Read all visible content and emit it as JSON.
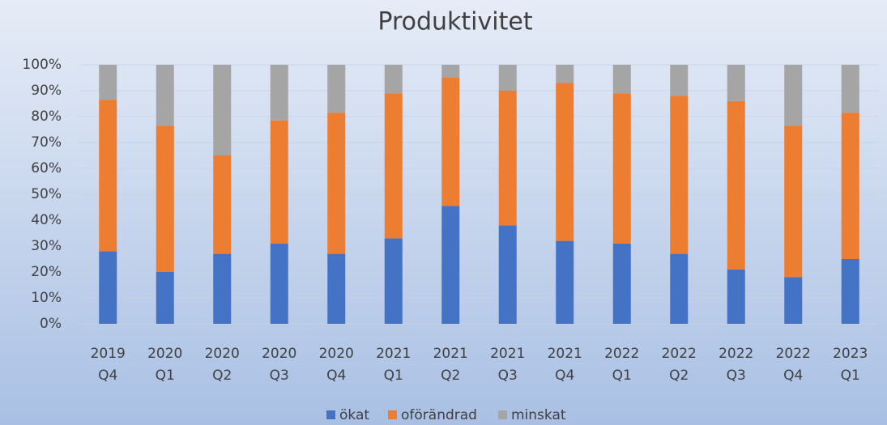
{
  "chart_data": {
    "type": "stacked_bar",
    "title": "Produktivitet",
    "categories": [
      [
        "2019",
        "Q4"
      ],
      [
        "2020",
        "Q1"
      ],
      [
        "2020",
        "Q2"
      ],
      [
        "2020",
        "Q3"
      ],
      [
        "2020",
        "Q4"
      ],
      [
        "2021",
        "Q1"
      ],
      [
        "2021",
        "Q2"
      ],
      [
        "2021",
        "Q3"
      ],
      [
        "2021",
        "Q4"
      ],
      [
        "2022",
        "Q1"
      ],
      [
        "2022",
        "Q2"
      ],
      [
        "2022",
        "Q3"
      ],
      [
        "2022",
        "Q4"
      ],
      [
        "2023",
        "Q1"
      ]
    ],
    "series": [
      {
        "name": "ökat",
        "color": "#4472c4",
        "values": [
          28,
          20,
          27,
          31,
          27,
          33,
          45.5,
          38,
          32,
          31,
          27,
          21,
          18,
          25
        ]
      },
      {
        "name": "oförändrad",
        "color": "#ed7d31",
        "values": [
          58.5,
          56.5,
          38,
          47.5,
          54.5,
          56,
          49.5,
          52,
          61,
          58,
          61,
          65,
          58.5,
          56.5
        ]
      },
      {
        "name": "minskat",
        "color": "#a5a5a5",
        "values": [
          13.5,
          23.5,
          35,
          21.5,
          18.5,
          11,
          5,
          10,
          7,
          11,
          12,
          14,
          23.5,
          18.5
        ]
      }
    ],
    "ylim": [
      0,
      100
    ],
    "yticks": [
      {
        "value": 0,
        "label": "0%"
      },
      {
        "value": 10,
        "label": "10%"
      },
      {
        "value": 20,
        "label": "20%"
      },
      {
        "value": 30,
        "label": "30%"
      },
      {
        "value": 40,
        "label": "40%"
      },
      {
        "value": 50,
        "label": "50%"
      },
      {
        "value": 60,
        "label": "60%"
      },
      {
        "value": 70,
        "label": "70%"
      },
      {
        "value": 80,
        "label": "80%"
      },
      {
        "value": 90,
        "label": "90%"
      },
      {
        "value": 100,
        "label": "100%"
      }
    ],
    "grid": true,
    "legend": "bottom"
  }
}
